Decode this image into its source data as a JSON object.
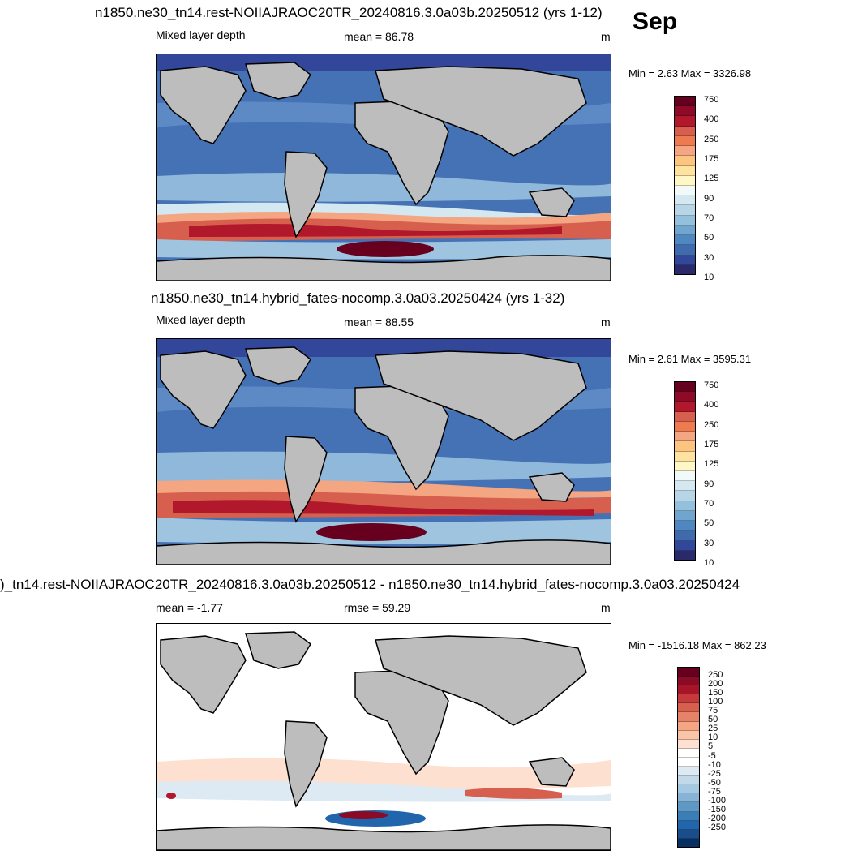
{
  "month": "Sep",
  "panels": [
    {
      "title": "n1850.ne30_tn14.rest-NOIIAJRAOC20TR_20240816.3.0a03b.20250512 (yrs 1-12)",
      "left_label": "Mixed layer depth",
      "stat": "mean =  86.78",
      "units": "m",
      "minmax": "Min =   2.63 Max = 3326.98",
      "colorbar_colors": [
        "#67001f",
        "#8e0a26",
        "#b2182b",
        "#d6604d",
        "#ee7a4f",
        "#f4a582",
        "#fbc47f",
        "#fde2a0",
        "#fff7c6",
        "#f2f9f9",
        "#d4e8f1",
        "#b6d6e8",
        "#92c0dd",
        "#6fa5cf",
        "#4f88c0",
        "#3f6aad",
        "#33479a",
        "#2a2a6b"
      ],
      "colorbar_labels": [
        "750",
        "400",
        "250",
        "175",
        "125",
        "90",
        "70",
        "50",
        "30",
        "10"
      ]
    },
    {
      "title": "n1850.ne30_tn14.hybrid_fates-nocomp.3.0a03.20250424 (yrs 1-32)",
      "left_label": "Mixed layer depth",
      "stat": "mean =  88.55",
      "units": "m",
      "minmax": "Min =   2.61 Max = 3595.31",
      "colorbar_colors": [
        "#67001f",
        "#8e0a26",
        "#b2182b",
        "#d6604d",
        "#ee7a4f",
        "#f4a582",
        "#fbc47f",
        "#fde2a0",
        "#fff7c6",
        "#f2f9f9",
        "#d4e8f1",
        "#b6d6e8",
        "#92c0dd",
        "#6fa5cf",
        "#4f88c0",
        "#3f6aad",
        "#33479a",
        "#2a2a6b"
      ],
      "colorbar_labels": [
        "750",
        "400",
        "250",
        "175",
        "125",
        "90",
        "70",
        "50",
        "30",
        "10"
      ]
    },
    {
      "title": ")_tn14.rest-NOIIAJRAOC20TR_20240816.3.0a03b.20250512 - n1850.ne30_tn14.hybrid_fates-nocomp.3.0a03.20250424",
      "left_label": "mean =  -1.77",
      "stat": "rmse =  59.29",
      "units": "m",
      "minmax": "Min = -1516.18 Max = 862.23",
      "colorbar_colors": [
        "#67001f",
        "#8a0b25",
        "#a81529",
        "#c43a3c",
        "#d6604d",
        "#e58267",
        "#f4a582",
        "#f9c4a8",
        "#fde0d0",
        "#ffffff",
        "#ffffff",
        "#dde9f3",
        "#c2d9ea",
        "#a6c8e1",
        "#86b3d6",
        "#5d98c7",
        "#3a7db7",
        "#2166ac",
        "#1a4d8a",
        "#053061"
      ],
      "colorbar_labels": [
        "250",
        "200",
        "150",
        "100",
        "75",
        "50",
        "25",
        "10",
        "5",
        "-5",
        "-10",
        "-25",
        "-50",
        "-75",
        "-100",
        "-150",
        "-200",
        "-250"
      ]
    }
  ]
}
